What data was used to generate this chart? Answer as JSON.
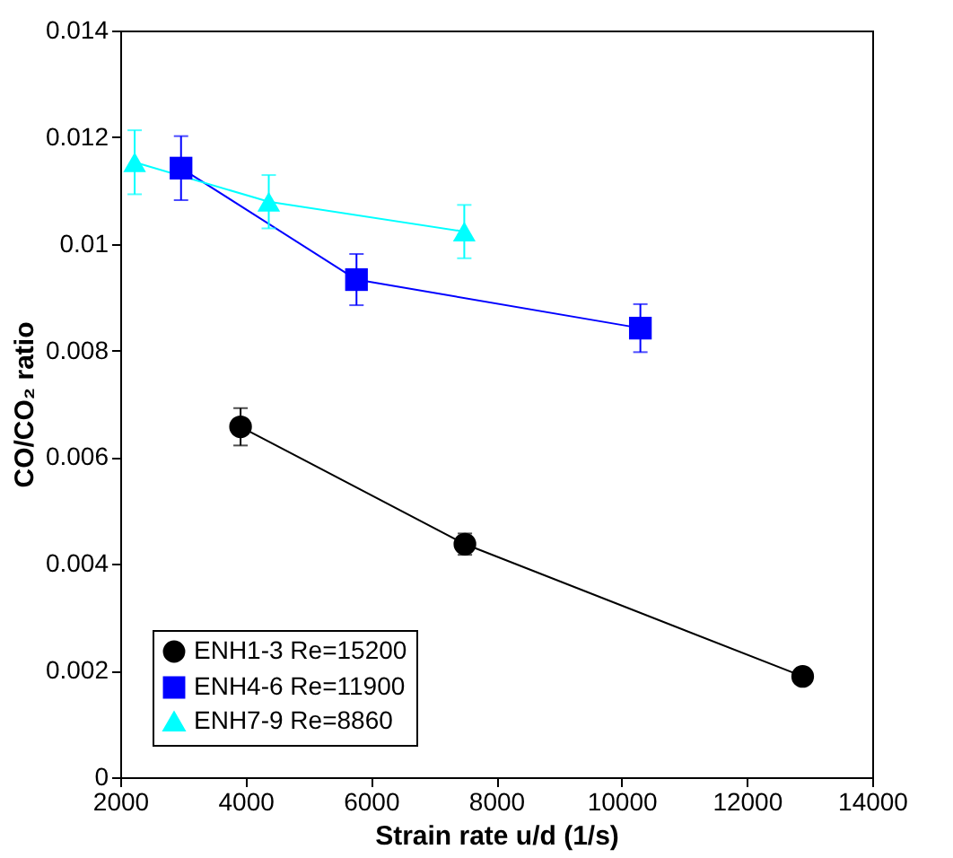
{
  "chart_data": {
    "type": "line",
    "xlabel": "Strain rate u/d (1/s)",
    "ylabel": "CO/CO₂ ratio",
    "xlim": [
      2000,
      14000
    ],
    "xticks": [
      2000,
      4000,
      6000,
      8000,
      10000,
      12000,
      14000
    ],
    "ylim": [
      0,
      0.014
    ],
    "yticks": [
      0,
      0.002,
      0.004,
      0.006,
      0.008,
      0.01,
      0.012,
      0.014
    ],
    "grid": false,
    "legend": "bottom left",
    "line_style": "solid",
    "series": [
      {
        "name": "ENH1-3 Re=15200",
        "color": "#000000",
        "marker": "circle",
        "x": [
          3920,
          7500,
          12890
        ],
        "values": [
          0.00657,
          0.00437,
          0.00189
        ],
        "errors": [
          0.00035,
          0.0002,
          null
        ]
      },
      {
        "name": "ENH4-6 Re=11900",
        "color": "#0000ff",
        "marker": "square",
        "x": [
          2970,
          5770,
          10300
        ],
        "values": [
          0.01142,
          0.00933,
          0.00842
        ],
        "errors": [
          0.0006,
          0.00048,
          0.00045
        ]
      },
      {
        "name": "ENH7-9 Re=8860",
        "color": "#00ffff",
        "marker": "triangle",
        "x": [
          2230,
          4370,
          7490
        ],
        "values": [
          0.01153,
          0.01079,
          0.01023
        ],
        "errors": [
          0.0006,
          0.0005,
          0.0005
        ]
      }
    ]
  }
}
